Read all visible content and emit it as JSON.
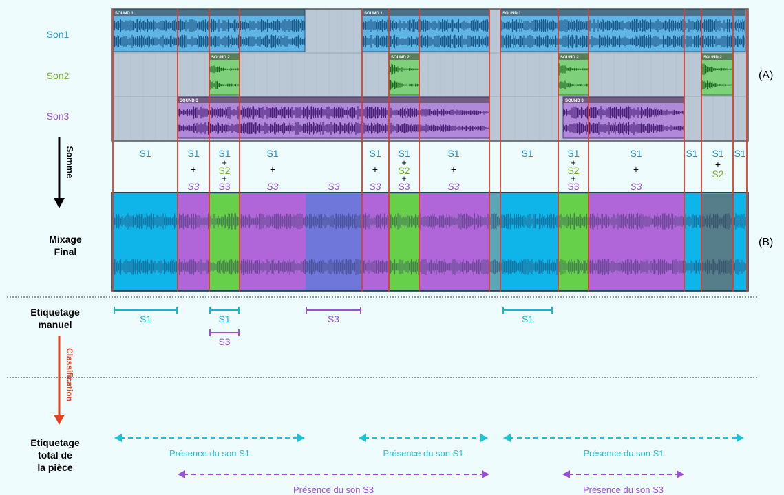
{
  "rows": [
    {
      "label": "Son1",
      "color": "#2aa3d8"
    },
    {
      "label": "Son2",
      "color": "#7ab32c"
    },
    {
      "label": "Son3",
      "color": "#9d4fd0"
    }
  ],
  "clip_labels": {
    "s1": "SOUND 1",
    "s2": "SOUND 2",
    "s3": "SOUND 3"
  },
  "markers": {
    "a": "(A)",
    "b": "(B)"
  },
  "arrows": {
    "somme": "Somme",
    "classification": "Classification"
  },
  "labels": {
    "mix": [
      "Mixage",
      "Final"
    ],
    "manual": [
      "Etiquetage",
      "manuel"
    ],
    "total": [
      "Etiquetage",
      "total de",
      "la pièce"
    ]
  },
  "sum_tags": {
    "s1": "S1",
    "s2": "S2",
    "s3": "S3",
    "plus": "+"
  },
  "manual_tags": [
    "S1",
    "S1",
    "S3",
    "S3",
    "S1"
  ],
  "presence": {
    "s1": "Présence du son S1",
    "s3": "Présence du son S3"
  },
  "colors": {
    "cyan": "#11c7d9",
    "purple": "#9a4fd6",
    "green": "#7aad2a",
    "red": "#e03b2a",
    "blue_text": "#1b8fd0",
    "track_bg": "#b9c8d4",
    "mix_cyan": "#0fb5e8",
    "mix_purple": "#b066d8",
    "mix_green": "#66d04a",
    "mix_blue": "#6f78da",
    "mix_teal": "#557e8a"
  }
}
